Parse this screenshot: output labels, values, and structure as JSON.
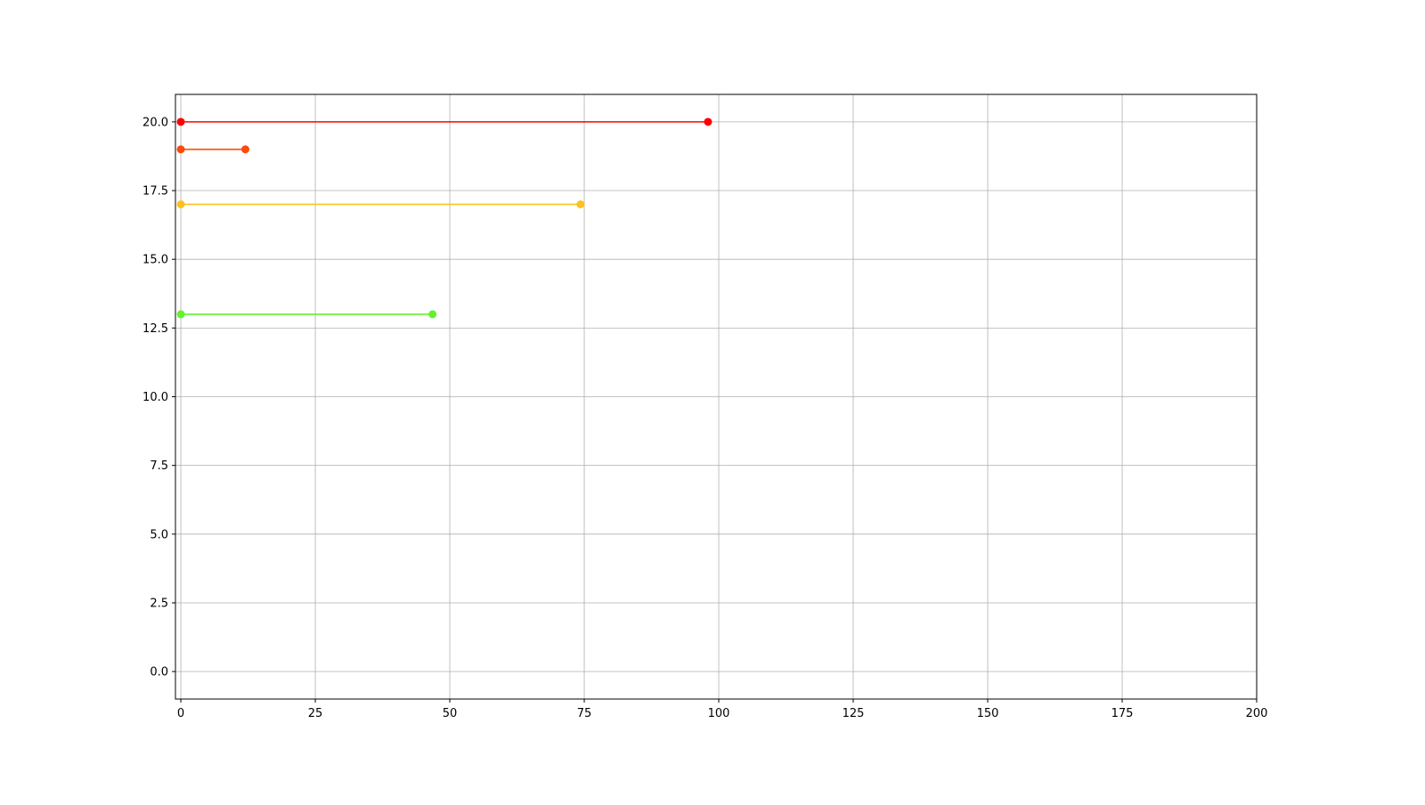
{
  "chart_data": {
    "type": "line",
    "title": "",
    "xlabel": "",
    "ylabel": "",
    "xlim": [
      -1,
      200
    ],
    "ylim": [
      -1,
      21
    ],
    "grid": true,
    "xticks": [
      0,
      25,
      50,
      75,
      100,
      125,
      150,
      175,
      200
    ],
    "xtick_labels": [
      "0",
      "25",
      "50",
      "75",
      "100",
      "125",
      "150",
      "175",
      "200"
    ],
    "yticks": [
      0,
      2.5,
      5,
      7.5,
      10,
      12.5,
      15,
      17.5,
      20
    ],
    "ytick_labels": [
      "0.0",
      "2.5",
      "5.0",
      "7.5",
      "10.0",
      "12.5",
      "15.0",
      "17.5",
      "20.0"
    ],
    "series": [
      {
        "color": "#ff0000",
        "x": [
          0,
          98
        ],
        "y": [
          20,
          20
        ]
      },
      {
        "color": "#ff4a0a",
        "x": [
          0,
          12
        ],
        "y": [
          19,
          19
        ]
      },
      {
        "color": "#ffc21a",
        "x": [
          0,
          74.3
        ],
        "y": [
          17,
          17
        ]
      },
      {
        "color": "#63f22c",
        "x": [
          0,
          46.8
        ],
        "y": [
          13,
          13
        ]
      }
    ]
  }
}
